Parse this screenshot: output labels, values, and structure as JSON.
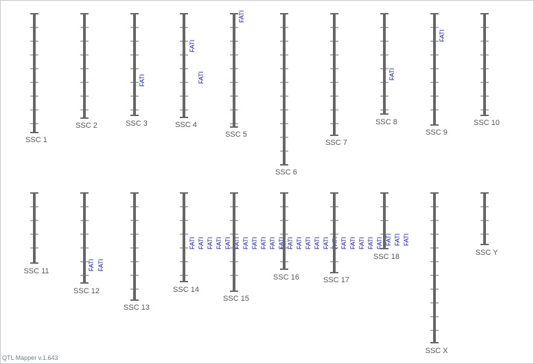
{
  "chromosomes": [
    {
      "label": "SSC 1"
    },
    {
      "label": "SSC 2"
    },
    {
      "label": "SSC 3",
      "qtls": [
        "FATI"
      ]
    },
    {
      "label": "SSC 4",
      "qtls": [
        "FATI",
        "FATI"
      ]
    },
    {
      "label": "SSC 5",
      "qtls": [
        "FATI"
      ]
    },
    {
      "label": "SSC 6"
    },
    {
      "label": "SSC 7"
    },
    {
      "label": "SSC 8",
      "qtls": [
        "FATI"
      ]
    },
    {
      "label": "SSC 9",
      "qtls": [
        "FATI"
      ]
    },
    {
      "label": "SSC 10"
    },
    {
      "label": "SSC 11"
    },
    {
      "label": "SSC 12",
      "qtls": [
        "FATI",
        "FATI"
      ]
    },
    {
      "label": "SSC 13"
    },
    {
      "label": "SSC 14",
      "qtls": [
        "FATI",
        "FATI",
        "FATI",
        "FATI",
        "FATI",
        "FATI",
        "FATI",
        "FATI",
        "FATI",
        "FATI",
        "FATI",
        "FATI",
        "FATI",
        "FATI",
        "FATI",
        "FATI",
        "FATI",
        "FATI",
        "FATI",
        "FATI",
        "FATI",
        "FATI",
        "FATI",
        "FATI",
        "FATI"
      ]
    },
    {
      "label": "SSC 15"
    },
    {
      "label": "SSC 16"
    },
    {
      "label": "SSC 17"
    },
    {
      "label": "SSC 18"
    },
    {
      "label": "SSC X"
    },
    {
      "label": "SSC Y"
    }
  ],
  "footer": "QTL Mapper v.1.643"
}
